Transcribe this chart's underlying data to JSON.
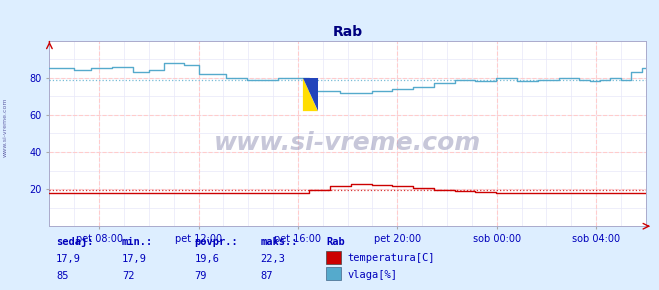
{
  "title": "Rab",
  "title_color": "#000080",
  "bg_color": "#ddeeff",
  "plot_bg_color": "#ffffff",
  "grid_color": "#ffcccc",
  "grid_minor_color": "#e8e8f8",
  "x_tick_labels": [
    "pet 08:00",
    "pet 12:00",
    "pet 16:00",
    "pet 20:00",
    "sob 00:00",
    "sob 04:00"
  ],
  "ylim": [
    0,
    100
  ],
  "yticks": [
    20,
    40,
    60,
    80
  ],
  "temp_color": "#cc0000",
  "humidity_color": "#55aacc",
  "avg_temp": 19.6,
  "avg_hum": 79.0,
  "watermark_text": "www.si-vreme.com",
  "left_label_text": "www.si-vreme.com",
  "footer_label_color": "#0000bb",
  "footer_bg_color": "#ddeeff",
  "sedaj_label": "sedaj:",
  "min_label": "min.:",
  "povpr_label": "povpr.:",
  "maks_label": "maks.:",
  "station_label": "Rab",
  "temp_sedaj": "17,9",
  "temp_min": "17,9",
  "temp_povpr": "19,6",
  "temp_maks": "22,3",
  "hum_sedaj": "85",
  "hum_min": "72",
  "hum_povpr": "79",
  "hum_maks": "87",
  "legend_temp": "temperatura[C]",
  "legend_hum": "vlaga[%]",
  "n_points": 288
}
